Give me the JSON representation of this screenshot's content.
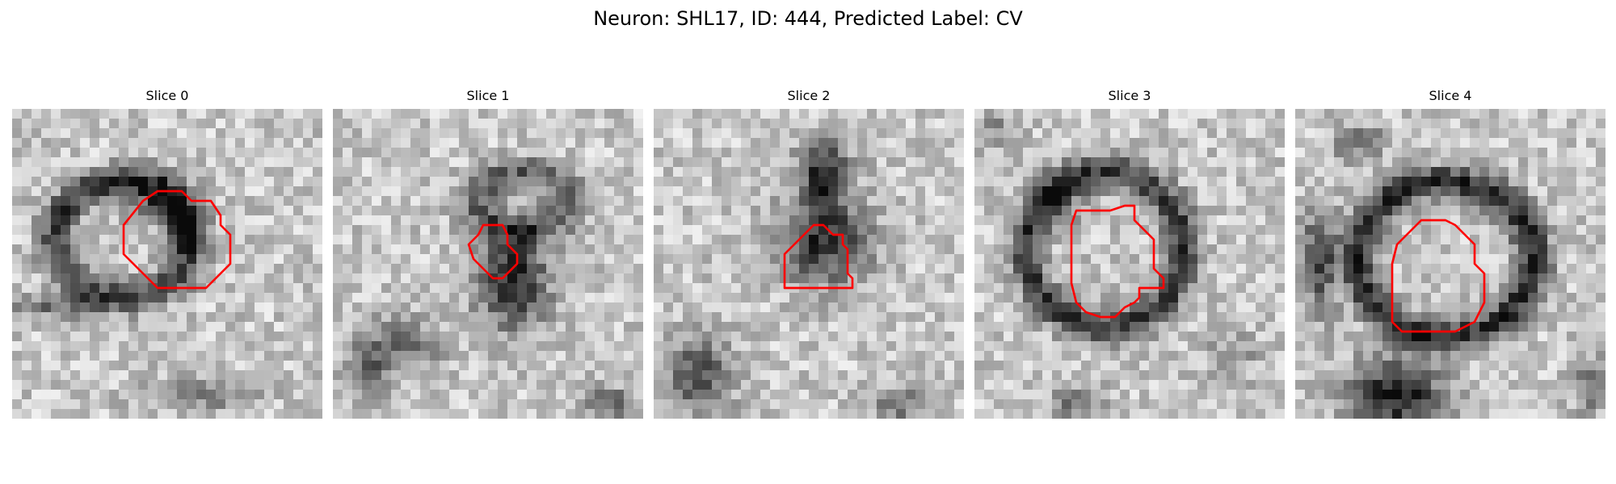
{
  "figure": {
    "title": "Neuron: SHL17, ID: 444, Predicted Label: CV"
  },
  "colors": {
    "contour": "#ff0000",
    "background": "#ffffff"
  },
  "panels": [
    {
      "title": "Slice 0"
    },
    {
      "title": "Slice 1"
    },
    {
      "title": "Slice 2"
    },
    {
      "title": "Slice 3"
    },
    {
      "title": "Slice 4"
    }
  ]
}
